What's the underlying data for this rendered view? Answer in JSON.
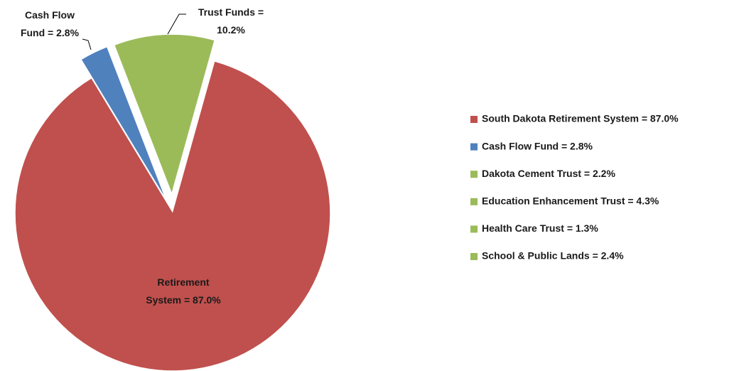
{
  "chart_data": {
    "type": "pie",
    "categories": [
      "South Dakota Retirement System = 87.0%",
      "Cash Flow Fund = 2.8%",
      "Dakota Cement Trust = 2.2%",
      "Education Enhancement Trust = 4.3%",
      "Health Care Trust = 1.3%",
      "School & Public Lands = 2.4%"
    ],
    "values": [
      87.0,
      2.8,
      2.2,
      4.3,
      1.3,
      2.4
    ],
    "colors": [
      "#c0504d",
      "#4f81bd",
      "#9bbb59",
      "#9bbb59",
      "#9bbb59",
      "#9bbb59"
    ],
    "data_labels": [
      {
        "text": [
          "Retirement",
          "System = 87.0%"
        ],
        "value": 87.0
      },
      {
        "text": [
          "Cash Flow",
          "Fund = 2.8%"
        ],
        "value": 2.8
      },
      {
        "text": [
          "Trust Funds =",
          "10.2%"
        ],
        "value": 10.2
      }
    ],
    "legend": "right"
  }
}
